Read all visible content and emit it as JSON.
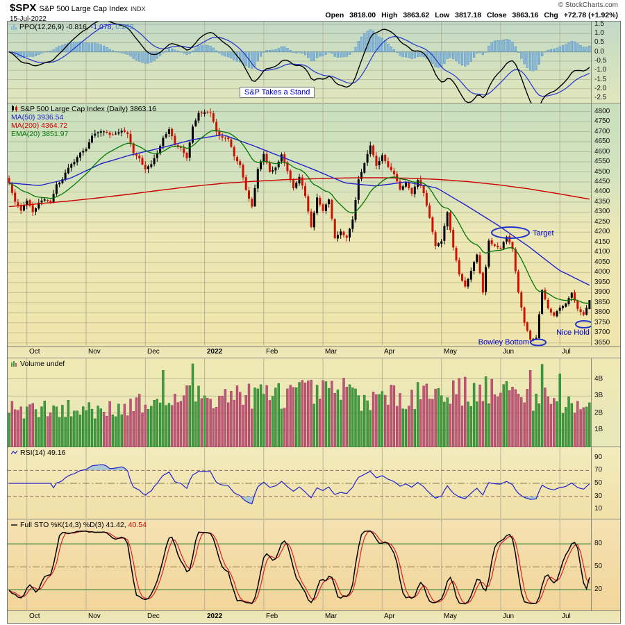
{
  "header": {
    "symbol": "$SPX",
    "name": "S&P 500 Large Cap Index",
    "exchange": "INDX",
    "date": "15-Jul-2022",
    "copyright": "© StockCharts.com",
    "quote": {
      "open_label": "Open",
      "open": "3818.00",
      "high_label": "High",
      "high": "3863.62",
      "low_label": "Low",
      "low": "3817.18",
      "close_label": "Close",
      "close": "3863.16",
      "chg_label": "Chg",
      "chg": "+72.78 (+1.92%)"
    }
  },
  "legend": {
    "ppo": {
      "label": "PPO(12,26,9)",
      "v1": "-0.816,",
      "v2": "-1.078,",
      "v3": "0.262"
    },
    "price": {
      "title": "S&P 500 Large Cap Index (Daily)",
      "value": "3863.16",
      "ma50": "MA(50) 3936.54",
      "ma200": "MA(200) 4364.72",
      "ema20": "EMA(20) 3851.97"
    },
    "volume": {
      "label": "Volume",
      "value": "undef"
    },
    "rsi": {
      "label": "RSI(14)",
      "value": "49.16"
    },
    "sto": {
      "label": "Full STO %K(14,3) %D(3)",
      "v1": "41.42,",
      "v2": "40.54"
    }
  },
  "annotations": {
    "stand": "S&P Takes a Stand",
    "target": "Target",
    "bowley": "Bowley Bottom",
    "nice_hold": "Nice Hold"
  },
  "colors": {
    "candle_up": "#000000",
    "candle_down": "#cc1100",
    "ma50": "#2222cc",
    "ma200": "#cc0000",
    "ema20": "#007700",
    "ppo_line": "#000000",
    "ppo_signal": "#2233cc",
    "ppo_hist": "#86b8dc",
    "vol_up": "#3f9b3f",
    "vol_down": "#c05575",
    "rsi_line": "#2222cc",
    "sto_k": "#000000",
    "sto_d": "#dd2222",
    "annotation_blue": "#0000cc"
  },
  "chart_data": {
    "type": "candlestick",
    "title": "S&P 500 Large Cap Index (Daily)",
    "as_of": "15-Jul-2022",
    "last_ohlc": {
      "open": 3818.0,
      "high": 3863.62,
      "low": 3817.18,
      "close": 3863.16,
      "change_pct": "+1.92%"
    },
    "months": [
      "Oct",
      "Nov",
      "Dec",
      "2022",
      "Feb",
      "Mar",
      "Apr",
      "May",
      "Jun",
      "Jul"
    ],
    "price_panel": {
      "ylim": [
        3650,
        4800
      ],
      "tick_step": 50,
      "pre_anchor_closes": [
        4443,
        4352,
        4307
      ],
      "monthly_closes": [
        [
          4357,
          4300,
          4346,
          4363,
          4350,
          4438,
          4463,
          4520,
          4549,
          4596
        ],
        [
          4613,
          4680,
          4697,
          4701,
          4683,
          4690,
          4704,
          4688,
          4594,
          4567
        ],
        [
          4513,
          4538,
          4591,
          4669,
          4712,
          4634,
          4620,
          4568,
          4725,
          4793
        ],
        [
          4796,
          4793,
          4700,
          4670,
          4663,
          4577,
          4533,
          4410,
          4327,
          4515
        ],
        [
          4589,
          4500,
          4521,
          4587,
          4504,
          4419,
          4475,
          4380,
          4226,
          4373
        ],
        [
          4306,
          4363,
          4171,
          4204,
          4173,
          4263,
          4463,
          4543,
          4631,
          4530
        ],
        [
          4583,
          4525,
          4488,
          4412,
          4447,
          4392,
          4459,
          4394,
          4272,
          4132
        ],
        [
          4155,
          4300,
          4124,
          3991,
          3930,
          4008,
          4089,
          3901,
          4158,
          4132
        ],
        [
          4121,
          4177,
          4116,
          3901,
          3750,
          3667,
          3675,
          3912,
          3822,
          3785
        ],
        [
          3825,
          3845,
          3899,
          3819,
          3790,
          3863.16
        ]
      ],
      "ma50": {
        "label": "MA(50)",
        "last": 3936.54,
        "anchors": [
          4445,
          4432,
          4468,
          4540,
          4585,
          4620,
          4660,
          4685,
          4630,
          4570,
          4510,
          4445,
          4430,
          4450,
          4420,
          4330,
          4235,
          4130,
          4012,
          3936.54
        ]
      },
      "ma200": {
        "label": "MA(200)",
        "last": 4364.72,
        "anchors": [
          4327,
          4342,
          4356,
          4372,
          4390,
          4410,
          4428,
          4443,
          4453,
          4461,
          4466,
          4470,
          4471,
          4469,
          4463,
          4452,
          4436,
          4416,
          4391,
          4364.72
        ]
      },
      "ema20": {
        "label": "EMA(20)",
        "last": 3851.97,
        "period": 20
      }
    },
    "ppo_panel": {
      "label": "PPO(12,26,9)",
      "periods": [
        12,
        26,
        9
      ],
      "last": [
        -0.816,
        -1.078,
        0.262
      ],
      "ticks": [
        1.5,
        1.0,
        0.5,
        0.0,
        -0.5,
        -1.0,
        -1.5,
        -2.0,
        -2.5
      ]
    },
    "volume_panel": {
      "label": "Volume",
      "value": "undef",
      "unit": "B",
      "ticks_billions": [
        4,
        3,
        2,
        1
      ],
      "monthly_base_billions": [
        2.15,
        2.2,
        2.55,
        3.1,
        3.05,
        3.2,
        2.8,
        3.3,
        3.3,
        2.55
      ],
      "spike_bars": [
        [
          52,
          4.5
        ],
        [
          62,
          4.88
        ],
        [
          113,
          4.05
        ],
        [
          138,
          3.8
        ],
        [
          176,
          4.5
        ],
        [
          180,
          4.85
        ],
        [
          186,
          4.3
        ]
      ]
    },
    "rsi_panel": {
      "label": "RSI(14)",
      "period": 14,
      "last": 49.16,
      "ticks": [
        90,
        70,
        50,
        30,
        10
      ],
      "guides": [
        70,
        50,
        30
      ]
    },
    "sto_panel": {
      "label": "Full STO %K(14,3) %D(3)",
      "last": [
        41.42,
        40.54
      ],
      "ticks": [
        80,
        50,
        20
      ],
      "guides": [
        80,
        50,
        20
      ]
    }
  }
}
